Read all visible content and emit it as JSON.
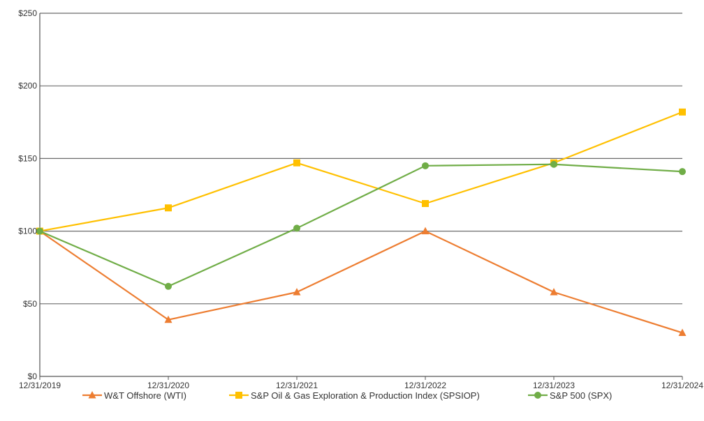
{
  "chart_data": {
    "type": "line",
    "title": "",
    "xlabel": "",
    "ylabel": "",
    "categories": [
      "12/31/2019",
      "12/31/2020",
      "12/31/2021",
      "12/31/2022",
      "12/31/2023",
      "12/31/2024"
    ],
    "ylim": [
      0,
      250
    ],
    "yticks": [
      0,
      50,
      100,
      150,
      200,
      250
    ],
    "ytick_labels": [
      "$0",
      "$50",
      "$100",
      "$150",
      "$200",
      "$250"
    ],
    "grid": "horizontal",
    "legend_position": "bottom",
    "series": [
      {
        "name": "W&T Offshore (WTI)",
        "values": [
          100,
          39,
          58,
          100,
          58,
          30
        ],
        "color": "#ED7D31",
        "marker": "triangle"
      },
      {
        "name": "S&P Oil & Gas Exploration & Production Index (SPSIOP)",
        "values": [
          100,
          116,
          147,
          119,
          147,
          182
        ],
        "color": "#FFC000",
        "marker": "square"
      },
      {
        "name": "S&P 500 (SPX)",
        "values": [
          100,
          62,
          102,
          145,
          146,
          141
        ],
        "color": "#70AD47",
        "marker": "circle"
      }
    ]
  }
}
